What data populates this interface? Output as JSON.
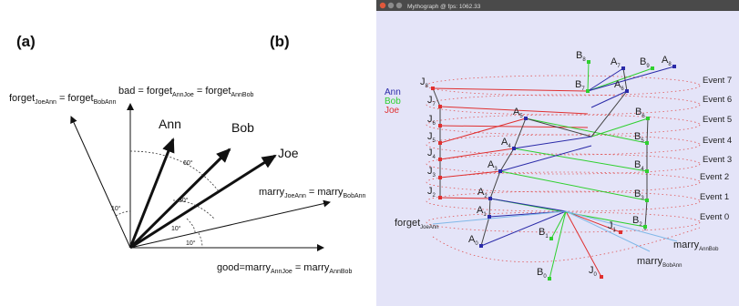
{
  "panel_a": {
    "tag": "(a)",
    "vectors": {
      "ann": "Ann",
      "bob": "Bob",
      "joe": "Joe"
    },
    "axes": {
      "forget": {
        "base": "forget",
        "sub1": "JoeAnn",
        "mid": " = forget",
        "sub2": "BobAnn"
      },
      "bad": {
        "base": "bad = forget",
        "sub1": "AnnJoe",
        "mid": " = forget",
        "sub2": "AnnBob"
      },
      "marry": {
        "base": "marry",
        "sub1": "JoeAnn",
        "mid": " = marry",
        "sub2": "BobAnn"
      },
      "good": {
        "base": "good=marry",
        "sub1": "AnnJoe",
        "mid": " = marry",
        "sub2": "AnnBob"
      }
    },
    "angles": {
      "a10_top": "10",
      "a60": "60",
      "a30": "30",
      "a10_mid": "10",
      "a10_low": "10"
    },
    "degree": "°"
  },
  "panel_b": {
    "tag": "(b)",
    "window_title": "Mythograph @ fps: 1062.33",
    "titlebar_color": "#4a4a4a",
    "background_color": "#e4e4f8",
    "legend": [
      {
        "label": "Ann",
        "color": "#2a2aa8"
      },
      {
        "label": "Bob",
        "color": "#2fd02f"
      },
      {
        "label": "Joe",
        "color": "#e03030"
      }
    ],
    "events": [
      "Event 7",
      "Event 6",
      "Event 5",
      "Event 4",
      "Event 3",
      "Event 2",
      "Event 1",
      "Event 0"
    ],
    "node_labels": {
      "ann": [
        "A",
        "A",
        "A",
        "A",
        "A",
        "A",
        "A",
        "A",
        "A"
      ],
      "ann_subs": [
        "0",
        "1",
        "2",
        "3",
        "4",
        "5",
        "6",
        "7",
        "8"
      ],
      "bob": [
        "B",
        "B",
        "B",
        "B",
        "B",
        "B",
        "B",
        "B",
        "B",
        "B"
      ],
      "bob_subs": [
        "0",
        "1",
        "2",
        "3",
        "4",
        "5",
        "6",
        "7",
        "8",
        "9"
      ],
      "joe": [
        "J",
        "J",
        "J",
        "J",
        "J",
        "J",
        "J",
        "J",
        "J"
      ],
      "joe_subs": [
        "0",
        "1",
        "2",
        "3",
        "4",
        "5",
        "6",
        "7",
        "8"
      ]
    },
    "bottom_labels": {
      "forget": {
        "base": "forget",
        "sub": "JoeAnn"
      },
      "marry_bob": {
        "base": "marry",
        "sub": "AnnBob"
      },
      "marry_ann": {
        "base": "marry",
        "sub": "BobAnn"
      }
    }
  }
}
